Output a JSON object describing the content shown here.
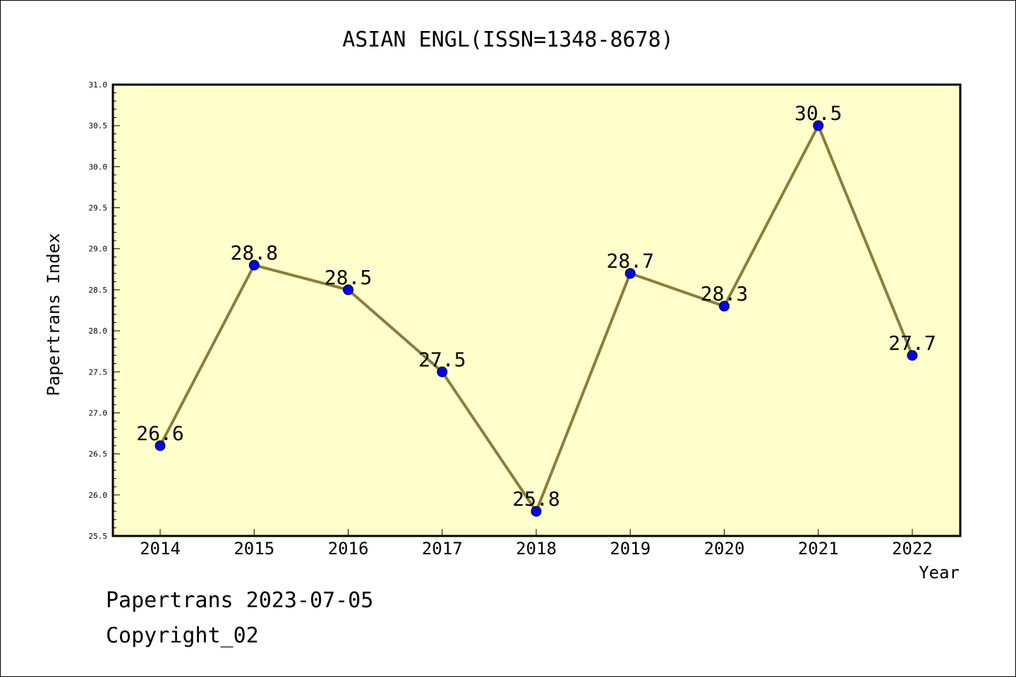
{
  "chart_data": {
    "type": "line",
    "title": "ASIAN ENGL(ISSN=1348-8678)",
    "xlabel": "Year",
    "ylabel": "Papertrans Index",
    "categories": [
      "2014",
      "2015",
      "2016",
      "2017",
      "2018",
      "2019",
      "2020",
      "2021",
      "2022"
    ],
    "series": [
      {
        "values": [
          26.6,
          28.8,
          28.5,
          27.5,
          25.8,
          28.7,
          28.3,
          30.5,
          27.7
        ],
        "data_labels": [
          "26.6",
          "28.8",
          "28.5",
          "27.5",
          "25.8",
          "28.7",
          "28.3",
          "30.5",
          "27.7"
        ]
      }
    ],
    "ylim": [
      25.5,
      31.0
    ],
    "yticks": [
      "25.5",
      "26.0",
      "26.5",
      "27.0",
      "27.5",
      "28.0",
      "28.5",
      "29.0",
      "29.5",
      "30.0",
      "30.5",
      "31.0"
    ],
    "grid": false,
    "colors": {
      "plot_background": "#ffffcc",
      "line": "#8b7d3a",
      "marker": "#0000ff"
    }
  },
  "footer": {
    "date_text": "Papertrans 2023-07-05",
    "copyright_text": "Copyright_02"
  }
}
